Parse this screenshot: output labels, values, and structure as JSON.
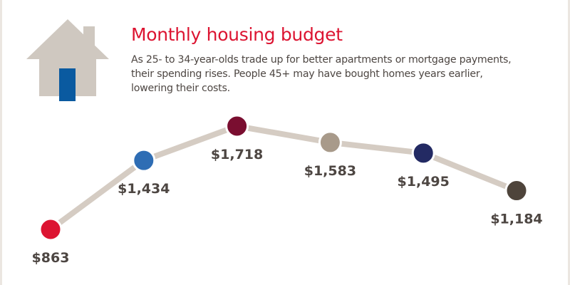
{
  "header": {
    "title": "Monthly housing budget",
    "subtitle_lines": [
      "As 25- to 34-year-olds trade up for better apartments or mortgage payments,",
      "their spending rises. People 45+ may have bought homes years earlier,",
      "lowering their costs."
    ],
    "title_color": "#dc1431",
    "icon": "house-icon"
  },
  "colors": {
    "line": "#d5ccc3",
    "house": "#cfc8c0",
    "door": "#0a5aa0",
    "label": "#4d4642"
  },
  "chart_data": {
    "type": "line",
    "title": "Monthly housing budget",
    "xlabel": "",
    "ylabel": "",
    "categories": [
      "",
      "",
      "",
      "",
      "",
      ""
    ],
    "values": [
      863,
      1434,
      1718,
      1583,
      1495,
      1184
    ],
    "labels": [
      "$863",
      "$1,434",
      "$1,718",
      "$1,583",
      "$1,495",
      "$1,184"
    ],
    "point_colors": [
      "#dc1431",
      "#2e6db4",
      "#7a0e30",
      "#a89a8a",
      "#232a63",
      "#4e443b"
    ],
    "axes_visible": false,
    "grid": false,
    "legend": "none"
  }
}
